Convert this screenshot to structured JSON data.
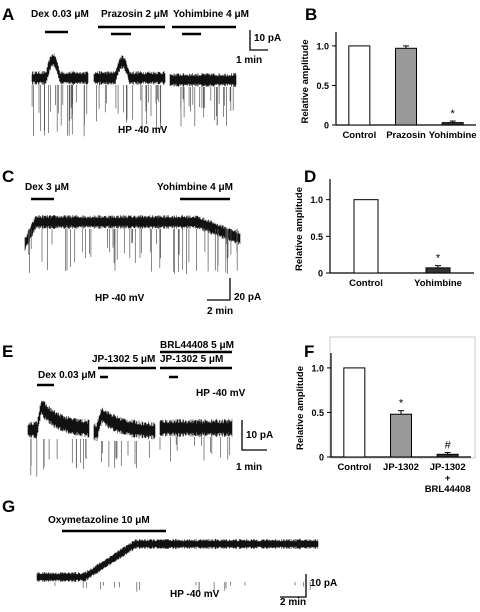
{
  "panels": {
    "A": {
      "letter": "A",
      "drug_labels": [
        "Dex 0.03 μM",
        "Prazosin 2 μM",
        "Yohimbine 4 μM"
      ],
      "scale_y": "10 pA",
      "scale_x": "1 min",
      "hp": "HP -40 mV"
    },
    "C": {
      "letter": "C",
      "drug_labels": [
        "Dex 3 μM",
        "Yohimbine 4 μM"
      ],
      "scale_y": "20 pA",
      "scale_x": "2 min",
      "hp": "HP -40 mV"
    },
    "E": {
      "letter": "E",
      "drug_labels": [
        "Dex 0.03 μM",
        "JP-1302 5 μM",
        "JP-1302 5 μM",
        "BRL44408 5 μM"
      ],
      "scale_y": "10 pA",
      "scale_x": "1 min",
      "hp": "HP -40 mV"
    },
    "G": {
      "letter": "G",
      "drug_labels": [
        "Oxymetazoline 10 μM"
      ],
      "scale_y": "10 pA",
      "scale_x": "2 min",
      "hp": "HP -40 mV"
    }
  },
  "chart_data": [
    {
      "panel": "B",
      "type": "bar",
      "categories": [
        "Control",
        "Prazosin",
        "Yohimbine"
      ],
      "values": [
        1.0,
        0.97,
        0.03
      ],
      "errors": [
        0,
        0.03,
        0.02
      ],
      "colors": [
        "#ffffff",
        "#999999",
        "#333333"
      ],
      "significance": [
        "",
        "",
        "*"
      ],
      "ylabel": "Relative amplitude",
      "ylim": [
        0,
        1.1
      ],
      "yticks": [
        "0",
        "0.5",
        "1.0"
      ]
    },
    {
      "panel": "D",
      "type": "bar",
      "categories": [
        "Control",
        "Yohimbine"
      ],
      "values": [
        1.0,
        0.07
      ],
      "errors": [
        0,
        0.03
      ],
      "colors": [
        "#ffffff",
        "#333333"
      ],
      "significance": [
        "",
        "*"
      ],
      "ylabel": "Relative amplitude",
      "ylim": [
        0,
        1.2
      ],
      "yticks": [
        "0",
        "0.5",
        "1.0"
      ]
    },
    {
      "panel": "F",
      "type": "bar",
      "categories": [
        "Control",
        "JP-1302",
        "JP-1302"
      ],
      "values": [
        1.0,
        0.48,
        0.03
      ],
      "errors": [
        0,
        0.04,
        0.02
      ],
      "colors": [
        "#ffffff",
        "#999999",
        "#333333"
      ],
      "significance": [
        "",
        "*",
        "#"
      ],
      "sublabels": [
        "",
        "",
        "+\nBRL44408"
      ],
      "ylabel": "Relative amplitude",
      "ylim": [
        0,
        1.1
      ],
      "yticks": [
        "0",
        "0.5",
        "1.0"
      ]
    }
  ]
}
